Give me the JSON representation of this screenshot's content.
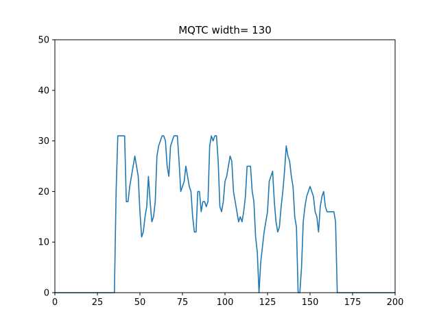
{
  "chart_data": {
    "type": "line",
    "title": "MQTC width= 130",
    "xlabel": "",
    "ylabel": "",
    "xlim": [
      0,
      200
    ],
    "ylim": [
      0,
      50
    ],
    "xticks": [
      0,
      25,
      50,
      75,
      100,
      125,
      150,
      175,
      200
    ],
    "yticks": [
      0,
      10,
      20,
      30,
      40,
      50
    ],
    "grid": false,
    "legend": "none",
    "series": [
      {
        "color": "#1f77b4",
        "x": [
          0,
          35,
          36,
          37,
          38,
          39,
          40,
          41,
          42,
          43,
          44,
          45,
          46,
          47,
          48,
          49,
          50,
          51,
          52,
          53,
          54,
          55,
          56,
          57,
          58,
          59,
          60,
          61,
          62,
          63,
          64,
          65,
          66,
          67,
          68,
          69,
          70,
          71,
          72,
          73,
          74,
          75,
          76,
          77,
          78,
          79,
          80,
          81,
          82,
          83,
          84,
          85,
          86,
          87,
          88,
          89,
          90,
          91,
          92,
          93,
          94,
          95,
          96,
          97,
          98,
          99,
          100,
          101,
          102,
          103,
          104,
          105,
          106,
          107,
          108,
          109,
          110,
          111,
          112,
          113,
          114,
          115,
          116,
          117,
          118,
          119,
          120,
          121,
          122,
          123,
          124,
          125,
          126,
          127,
          128,
          129,
          130,
          131,
          132,
          133,
          134,
          135,
          136,
          137,
          138,
          139,
          140,
          141,
          142,
          143,
          144,
          145,
          146,
          147,
          148,
          149,
          150,
          151,
          152,
          153,
          154,
          155,
          156,
          157,
          158,
          159,
          160,
          161,
          162,
          163,
          164,
          165,
          166,
          200
        ],
        "y": [
          0,
          0,
          20,
          31,
          31,
          31,
          31,
          31,
          18,
          18,
          21,
          23,
          25,
          27,
          25,
          23,
          16,
          11,
          12,
          15,
          17,
          23,
          18,
          14,
          15,
          18,
          27,
          29,
          30,
          31,
          31,
          30,
          25,
          23,
          29,
          30,
          31,
          31,
          31,
          26,
          20,
          21,
          22,
          25,
          23,
          21,
          20,
          15,
          12,
          12,
          20,
          20,
          16,
          18,
          18,
          17,
          18,
          29,
          31,
          30,
          31,
          31,
          26,
          17,
          16,
          18,
          22,
          23,
          25,
          27,
          26,
          20,
          18,
          16,
          14,
          15,
          14,
          16,
          19,
          25,
          25,
          25,
          20,
          18,
          11,
          8,
          0,
          6,
          9,
          12,
          14,
          16,
          22,
          23,
          24,
          18,
          14,
          12,
          13,
          17,
          20,
          24,
          29,
          27,
          26,
          23,
          21,
          15,
          13,
          0,
          0,
          5,
          14,
          17,
          19,
          20,
          21,
          20,
          19,
          16,
          15,
          12,
          17,
          19,
          20,
          17,
          16,
          16,
          16,
          16,
          16,
          14,
          0,
          0
        ]
      }
    ]
  }
}
